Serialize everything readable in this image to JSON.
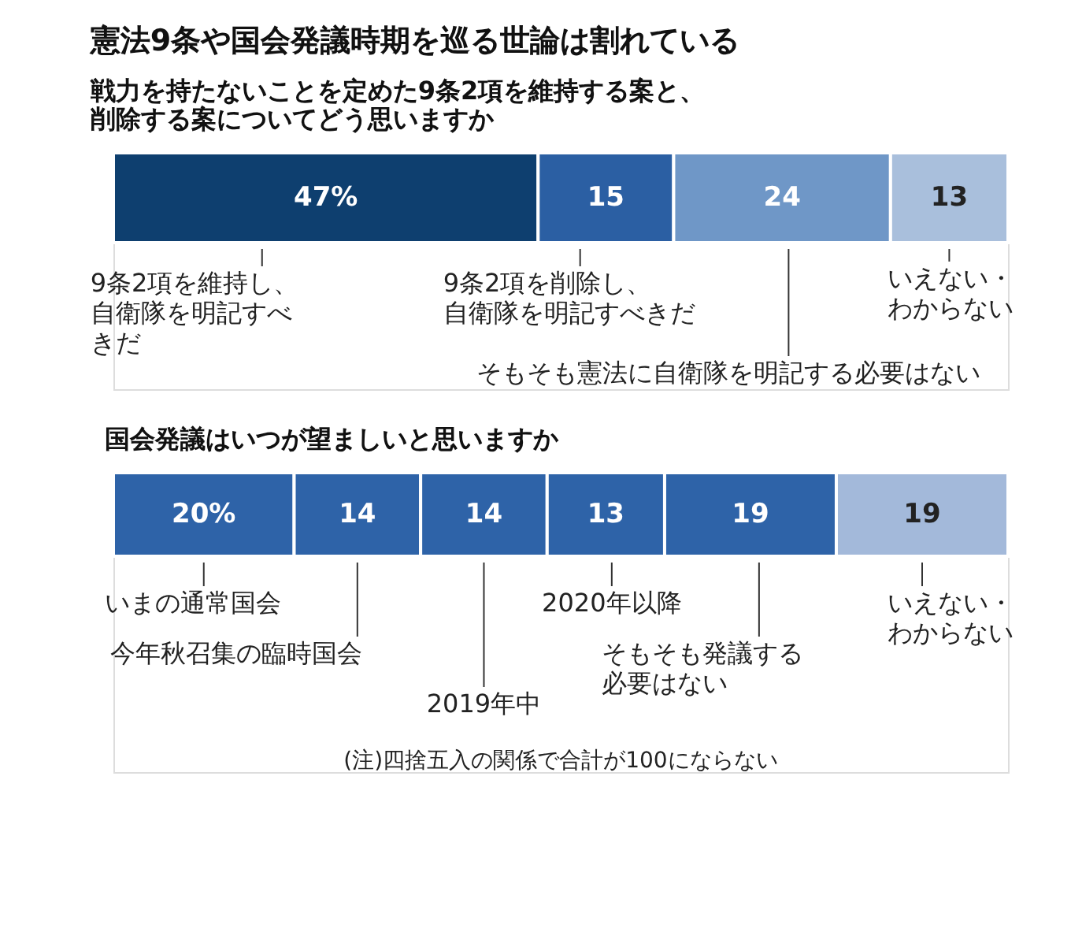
{
  "chart_data": [
    {
      "type": "bar",
      "orientation": "horizontal",
      "stacked": true,
      "title": "憲法9条や国会発議時期を巡る世論は割れている",
      "subtitle": "戦力を持たないことを定めた9条2項を維持する案と、削除する案についてどう思いますか",
      "categories": [
        null
      ],
      "series": [
        {
          "name": "9条2項を維持し、自衛隊を明記すべきだ",
          "color": "#0e3f6f",
          "values": [
            47
          ],
          "value_labels": [
            "47%"
          ]
        },
        {
          "name": "9条2項を削除し、自衛隊を明記すべきだ",
          "color": "#2b5fa3",
          "values": [
            15
          ],
          "value_labels": [
            "15"
          ]
        },
        {
          "name": "そもそも憲法に自衛隊を明記する必要はない",
          "color": "#6f97c7",
          "values": [
            24
          ],
          "value_labels": [
            "24"
          ]
        },
        {
          "name": "いえない・わからない",
          "color": "#a9bfdc",
          "values": [
            13
          ],
          "value_labels": [
            "13"
          ]
        }
      ]
    },
    {
      "type": "bar",
      "orientation": "horizontal",
      "stacked": true,
      "title": "国会発議はいつが望ましいと思いますか",
      "categories": [
        null
      ],
      "annotations": [
        "(注)四捨五入の関係で合計が100にならない"
      ],
      "series": [
        {
          "name": "いまの通常国会",
          "color": "#2e63a8",
          "values": [
            20
          ],
          "value_labels": [
            "20%"
          ]
        },
        {
          "name": "今年秋召集の臨時国会",
          "color": "#2e63a8",
          "values": [
            14
          ],
          "value_labels": [
            "14"
          ]
        },
        {
          "name": "2019年中",
          "color": "#2e63a8",
          "values": [
            14
          ],
          "value_labels": [
            "14"
          ]
        },
        {
          "name": "2020年以降",
          "color": "#2e63a8",
          "values": [
            13
          ],
          "value_labels": [
            "13"
          ]
        },
        {
          "name": "そもそも発議する必要はない",
          "color": "#2e63a8",
          "values": [
            19
          ],
          "value_labels": [
            "19"
          ]
        },
        {
          "name": "いえない・わからない",
          "color": "#a3b9da",
          "values": [
            19
          ],
          "value_labels": [
            "19"
          ]
        }
      ]
    }
  ]
}
